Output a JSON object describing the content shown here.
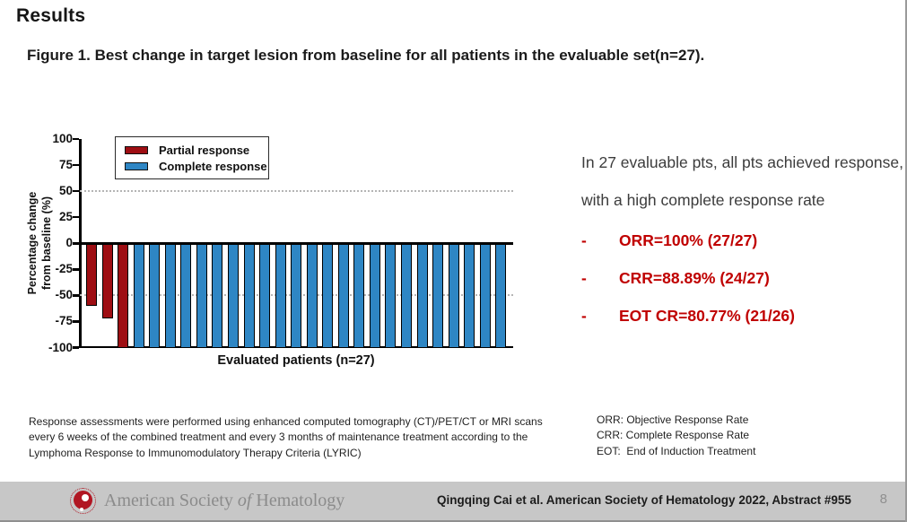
{
  "slide": {
    "title": "Results",
    "caption": "Figure 1. Best change in target lesion from baseline for all patients in the evaluable set(n=27)."
  },
  "chart_data": {
    "type": "bar",
    "title": "",
    "xlabel": "Evaluated patients (n=27)",
    "ylabel": "Percentage change from baseline (%)",
    "ylabel_lines": [
      "Percentage change",
      "from baseline (%)"
    ],
    "ylim": [
      -100,
      100
    ],
    "yticks": [
      100,
      75,
      50,
      25,
      0,
      -25,
      -50,
      -75,
      -100
    ],
    "reference_lines": [
      50,
      -50
    ],
    "grid": "dotted reference lines at +50 and -50 only",
    "legend_position": "top-left inside plot",
    "n": 27,
    "legend": [
      {
        "key": "partial",
        "label": "Partial response",
        "color": "#9e0e13"
      },
      {
        "key": "complete",
        "label": "Complete response",
        "color": "#2e86c4"
      }
    ],
    "bars": [
      {
        "patient": 1,
        "value": -60,
        "response": "partial"
      },
      {
        "patient": 2,
        "value": -72,
        "response": "partial"
      },
      {
        "patient": 3,
        "value": -100,
        "response": "partial"
      },
      {
        "patient": 4,
        "value": -100,
        "response": "complete"
      },
      {
        "patient": 5,
        "value": -100,
        "response": "complete"
      },
      {
        "patient": 6,
        "value": -100,
        "response": "complete"
      },
      {
        "patient": 7,
        "value": -100,
        "response": "complete"
      },
      {
        "patient": 8,
        "value": -100,
        "response": "complete"
      },
      {
        "patient": 9,
        "value": -100,
        "response": "complete"
      },
      {
        "patient": 10,
        "value": -100,
        "response": "complete"
      },
      {
        "patient": 11,
        "value": -100,
        "response": "complete"
      },
      {
        "patient": 12,
        "value": -100,
        "response": "complete"
      },
      {
        "patient": 13,
        "value": -100,
        "response": "complete"
      },
      {
        "patient": 14,
        "value": -100,
        "response": "complete"
      },
      {
        "patient": 15,
        "value": -100,
        "response": "complete"
      },
      {
        "patient": 16,
        "value": -100,
        "response": "complete"
      },
      {
        "patient": 17,
        "value": -100,
        "response": "complete"
      },
      {
        "patient": 18,
        "value": -100,
        "response": "complete"
      },
      {
        "patient": 19,
        "value": -100,
        "response": "complete"
      },
      {
        "patient": 20,
        "value": -100,
        "response": "complete"
      },
      {
        "patient": 21,
        "value": -100,
        "response": "complete"
      },
      {
        "patient": 22,
        "value": -100,
        "response": "complete"
      },
      {
        "patient": 23,
        "value": -100,
        "response": "complete"
      },
      {
        "patient": 24,
        "value": -100,
        "response": "complete"
      },
      {
        "patient": 25,
        "value": -100,
        "response": "complete"
      },
      {
        "patient": 26,
        "value": -100,
        "response": "complete"
      },
      {
        "patient": 27,
        "value": -100,
        "response": "complete"
      }
    ]
  },
  "summary": {
    "paragraph": "In 27 evaluable pts, all pts achieved response, with a high complete response rate",
    "bullet_marker": "-",
    "bullet_color": "#c00000",
    "bullets": [
      "ORR=100% (27/27)",
      "CRR=88.89% (24/27)",
      "EOT CR=80.77% (21/26)"
    ]
  },
  "footnotes": {
    "left": "Response assessments were performed using enhanced computed tomography (CT)/PET/CT or MRI scans every 6 weeks of the combined treatment and every 3 months of maintenance treatment according to the Lymphoma Response to Immunomodulatory Therapy Criteria (LYRIC)",
    "right": [
      "ORR: Objective Response Rate",
      "CRR: Complete Response Rate",
      "EOT:  End of Induction Treatment"
    ]
  },
  "footer": {
    "logo": {
      "pre": "American Society",
      "of": "of",
      "post": "Hematology",
      "brand_color": "#b11622"
    },
    "citation": "Qingqing Cai et al. American Society of Hematology 2022, Abstract #955",
    "page": "8"
  }
}
